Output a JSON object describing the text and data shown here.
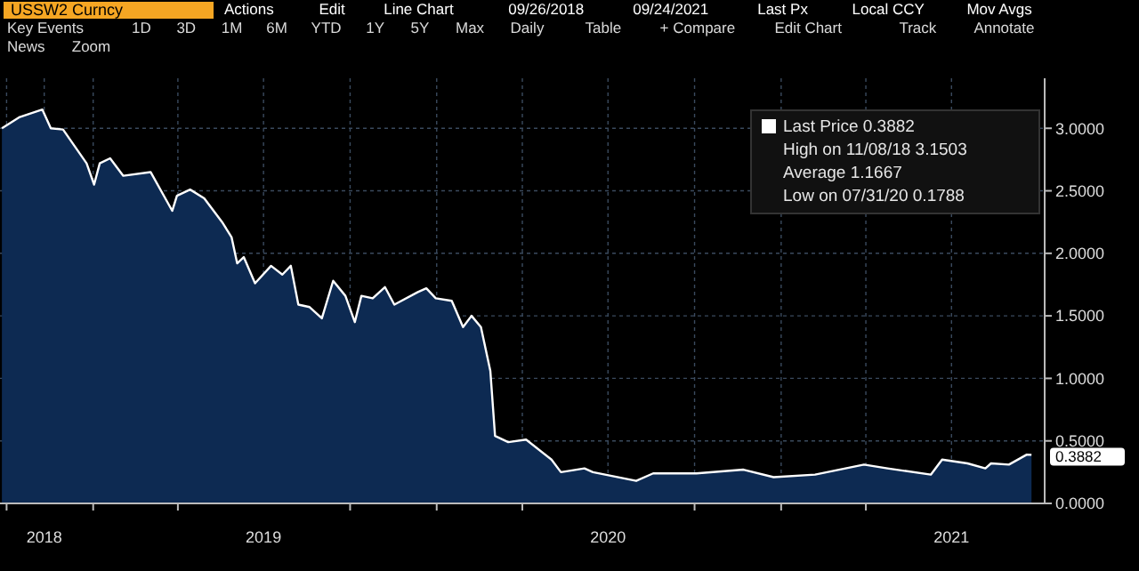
{
  "chart_data": {
    "type": "area",
    "title": "USSW2 Curncy",
    "annotations": [
      "Actions",
      "Edit",
      "Line Chart",
      "09/26/2018",
      "09/24/2021",
      "Last Px",
      "Local CCY",
      "Mov Avgs",
      "Key Events",
      "1D",
      "3D",
      "1M",
      "6M",
      "YTD",
      "1Y",
      "5Y",
      "Max",
      "Daily",
      "Table",
      "+ Compare",
      "Edit Chart",
      "Track",
      "Annotate",
      "News",
      "Zoom",
      "Last Price 0.3882",
      "High on 11/08/18 3.1503",
      "Average 1.1667",
      "Low on 07/31/20 0.1788"
    ],
    "x": [
      "2018-09-26",
      "2018-10-15",
      "2018-11-08",
      "2018-11-17",
      "2018-11-30",
      "2018-12-12",
      "2018-12-25",
      "2019-01-02",
      "2019-01-08",
      "2019-01-19",
      "2019-02-02",
      "2019-03-03",
      "2019-03-26",
      "2019-03-31",
      "2019-04-14",
      "2019-04-29",
      "2019-05-18",
      "2019-05-28",
      "2019-06-03",
      "2019-06-10",
      "2019-06-22",
      "2019-07-09",
      "2019-07-21",
      "2019-07-30",
      "2019-08-07",
      "2019-08-19",
      "2019-09-01",
      "2019-09-13",
      "2019-09-26",
      "2019-10-06",
      "2019-10-13",
      "2019-10-25",
      "2019-11-07",
      "2019-11-17",
      "2019-12-12",
      "2019-12-21",
      "2019-12-31",
      "2020-01-17",
      "2020-01-29",
      "2020-02-07",
      "2020-02-17",
      "2020-02-27",
      "2020-03-03",
      "2020-03-17",
      "2020-04-05",
      "2020-05-02",
      "2020-05-12",
      "2020-06-06",
      "2020-06-15",
      "2020-07-31",
      "2020-08-18",
      "2020-10-03",
      "2020-11-22",
      "2020-12-24",
      "2021-02-06",
      "2021-03-30",
      "2021-04-24",
      "2021-06-09",
      "2021-06-21",
      "2021-07-18",
      "2021-08-06",
      "2021-08-12",
      "2021-08-31",
      "2021-09-19",
      "2021-09-24"
    ],
    "series": [
      {
        "color": "#0d2a52",
        "values": [
          3.0,
          3.09,
          3.15,
          3.0,
          2.99,
          2.86,
          2.72,
          2.55,
          2.72,
          2.76,
          2.62,
          2.65,
          2.34,
          2.46,
          2.51,
          2.44,
          2.25,
          2.13,
          1.92,
          1.97,
          1.76,
          1.9,
          1.83,
          1.9,
          1.59,
          1.57,
          1.48,
          1.78,
          1.66,
          1.45,
          1.66,
          1.64,
          1.73,
          1.59,
          1.69,
          1.72,
          1.64,
          1.62,
          1.41,
          1.5,
          1.41,
          1.06,
          0.54,
          0.49,
          0.51,
          0.35,
          0.25,
          0.28,
          0.25,
          0.18,
          0.24,
          0.24,
          0.27,
          0.21,
          0.23,
          0.31,
          0.28,
          0.23,
          0.35,
          0.32,
          0.28,
          0.32,
          0.31,
          0.39,
          0.3882
        ],
        "value_labels": [
          null,
          null,
          null,
          null,
          null,
          null,
          null,
          null,
          null,
          null,
          null,
          null,
          null,
          null,
          null,
          null,
          null,
          null,
          null,
          null,
          null,
          null,
          null,
          null,
          null,
          null,
          null,
          null,
          null,
          null,
          null,
          null,
          null,
          null,
          null,
          null,
          null,
          null,
          null,
          null,
          null,
          null,
          null,
          null,
          null,
          null,
          null,
          null,
          null,
          null,
          null,
          null,
          null,
          null,
          null,
          null,
          null,
          null,
          null,
          null,
          null,
          null,
          null,
          null,
          "0.3882"
        ]
      }
    ],
    "xlim": [
      "2018-09-24",
      "2021-10-08"
    ],
    "xticks": [
      {
        "value": "2018-10-01",
        "label": null
      },
      {
        "value": "2018-11-10",
        "label": "2018"
      },
      {
        "value": "2019-01-01",
        "label": null
      },
      {
        "value": "2019-04-01",
        "label": null
      },
      {
        "value": "2019-07-01",
        "label": "2019"
      },
      {
        "value": "2019-10-01",
        "label": null
      },
      {
        "value": "2020-01-01",
        "label": null
      },
      {
        "value": "2020-04-01",
        "label": null
      },
      {
        "value": "2020-07-01",
        "label": "2020"
      },
      {
        "value": "2020-10-01",
        "label": null
      },
      {
        "value": "2021-01-01",
        "label": null
      },
      {
        "value": "2021-04-01",
        "label": null
      },
      {
        "value": "2021-07-01",
        "label": "2021"
      }
    ],
    "ylim": [
      0,
      3.4
    ],
    "yticks": [
      {
        "value": 0,
        "label": "0.0000"
      },
      {
        "value": 0.5,
        "label": "0.5000"
      },
      {
        "value": 1,
        "label": "1.0000"
      },
      {
        "value": 1.5,
        "label": "1.5000"
      },
      {
        "value": 2,
        "label": "2.0000"
      },
      {
        "value": 2.5,
        "label": "2.5000"
      },
      {
        "value": 3,
        "label": "3.0000"
      }
    ],
    "grid": true
  }
}
